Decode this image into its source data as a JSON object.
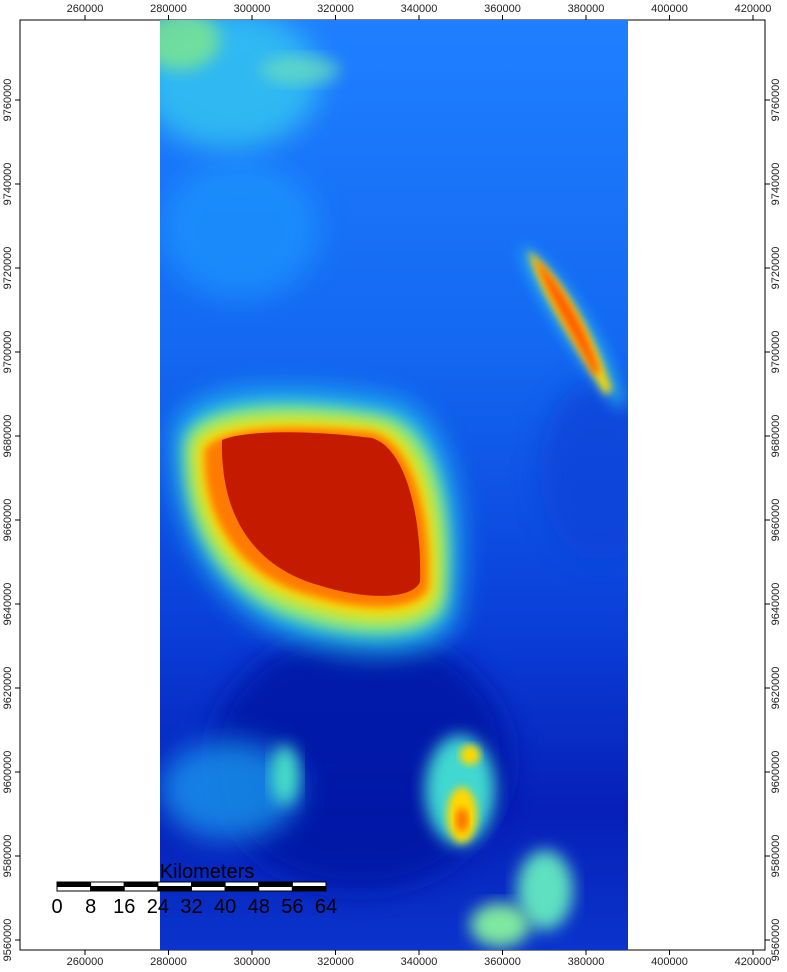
{
  "map": {
    "x_ticks": [
      "260000",
      "280000",
      "300000",
      "320000",
      "340000",
      "360000",
      "380000",
      "400000",
      "420000"
    ],
    "y_ticks": [
      "9760000",
      "9740000",
      "9720000",
      "9700000",
      "9680000",
      "9660000",
      "9640000",
      "9620000",
      "9600000",
      "9580000",
      "9560000"
    ],
    "elevation_colors": {
      "lowest": "#0010a8",
      "low": "#0050e8",
      "mid_low": "#1e8cff",
      "mid": "#2fe0e0",
      "mid_high": "#9ef06a",
      "high": "#ffd800",
      "higher": "#ff7a00",
      "highest": "#c41a00"
    }
  },
  "scale_bar": {
    "title": "Kilometers",
    "labels": [
      "0",
      "8",
      "16",
      "24",
      "32",
      "40",
      "48",
      "56",
      "64"
    ]
  }
}
